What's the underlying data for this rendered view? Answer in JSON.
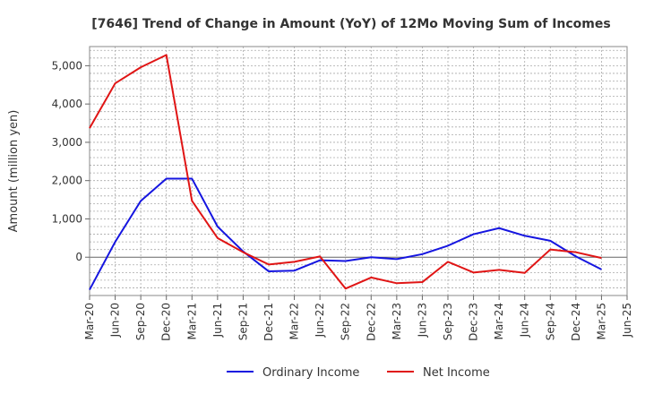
{
  "chart_data": {
    "type": "line",
    "title": "[7646]  Trend of Change in Amount (YoY) of 12Mo Moving Sum of Incomes",
    "xlabel": "",
    "ylabel": "Amount (million yen)",
    "x": [
      "Mar-20",
      "Jun-20",
      "Sep-20",
      "Dec-20",
      "Mar-21",
      "Jun-21",
      "Sep-21",
      "Dec-21",
      "Mar-22",
      "Jun-22",
      "Sep-22",
      "Dec-22",
      "Mar-23",
      "Jun-23",
      "Sep-23",
      "Dec-23",
      "Mar-24",
      "Jun-24",
      "Sep-24",
      "Dec-24",
      "Mar-25",
      "Jun-25"
    ],
    "ylim": [
      -1000,
      5500
    ],
    "yticks": [
      0,
      1000,
      2000,
      3000,
      4000,
      5000
    ],
    "ytick_labels": [
      "0",
      "1,000",
      "2,000",
      "3,000",
      "4,000",
      "5,000"
    ],
    "grid": true,
    "legend_position": "bottom",
    "series": [
      {
        "name": "Ordinary Income",
        "color": "#1515e0",
        "values": [
          -850,
          400,
          1470,
          2050,
          2050,
          800,
          150,
          -370,
          -350,
          -80,
          -100,
          0,
          -50,
          80,
          300,
          600,
          760,
          560,
          430,
          20,
          -320,
          null
        ]
      },
      {
        "name": "Net Income",
        "color": "#e01515",
        "values": [
          3370,
          4540,
          4960,
          5280,
          1470,
          500,
          130,
          -190,
          -120,
          20,
          -820,
          -530,
          -680,
          -650,
          -120,
          -400,
          -330,
          -410,
          200,
          130,
          -20,
          null
        ]
      }
    ]
  }
}
